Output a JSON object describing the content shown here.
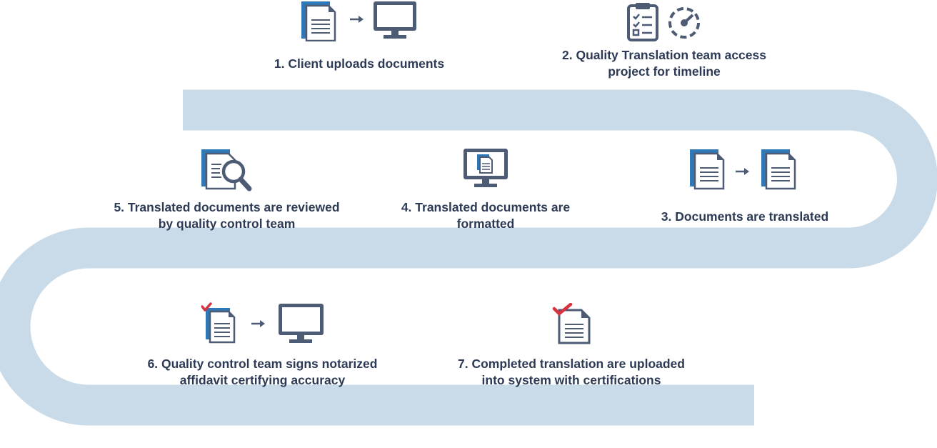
{
  "colors": {
    "road": "#c9dbe8",
    "icon_dark": "#4e5b74",
    "icon_blue": "#2f78b5",
    "check_red": "#d7333f",
    "text": "#2c3a55"
  },
  "steps": [
    {
      "id": 1,
      "icon": "upload-to-computer-icon",
      "lines": [
        "1. Client uploads documents"
      ]
    },
    {
      "id": 2,
      "icon": "clipboard-timeline-icon",
      "lines": [
        "2. Quality Translation team access",
        "project for timeline"
      ]
    },
    {
      "id": 3,
      "icon": "document-translate-icon",
      "lines": [
        "3. Documents are translated"
      ]
    },
    {
      "id": 4,
      "icon": "monitor-document-icon",
      "lines": [
        "4. Translated documents are",
        "formatted"
      ]
    },
    {
      "id": 5,
      "icon": "document-magnifier-icon",
      "lines": [
        "5. Translated documents are reviewed",
        "by quality control team"
      ]
    },
    {
      "id": 6,
      "icon": "signed-document-to-computer-icon",
      "lines": [
        "6. Quality control team signs notarized",
        "affidavit certifying accuracy"
      ]
    },
    {
      "id": 7,
      "icon": "certified-document-icon",
      "lines": [
        "7. Completed translation are uploaded",
        "into system with certifications"
      ]
    }
  ]
}
